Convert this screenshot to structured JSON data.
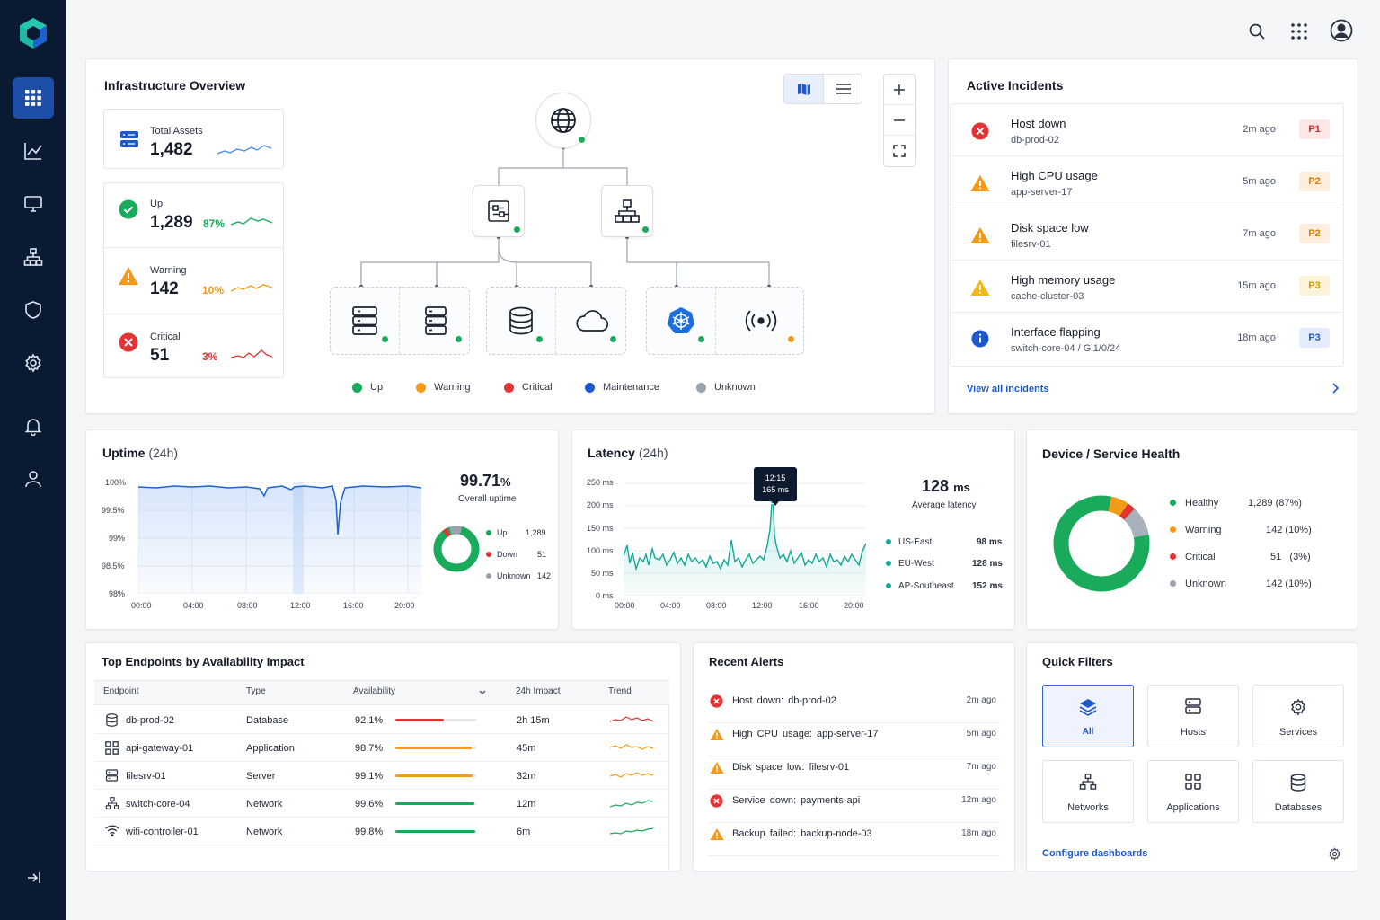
{
  "colors": {
    "accent": "#1d59cc",
    "up": "#1aaa5c",
    "warning": "#f59a18",
    "critical": "#e23434",
    "maintenance": "#1d59cc",
    "unknown": "#9aa2ae",
    "sidebar": "#0b1a33"
  },
  "sidebar": {
    "items": [
      "dashboard-grid-icon",
      "analytics-chart-icon",
      "monitor-icon",
      "network-icon",
      "shield-icon",
      "settings-gear-icon",
      "bell-icon",
      "user-icon"
    ],
    "collapse": "collapse-arrow-icon"
  },
  "topbar": {
    "icons": [
      "search-icon",
      "apps-grid-icon",
      "profile-avatar-icon"
    ]
  },
  "overview": {
    "title": "Infrastructure Overview",
    "total": {
      "label": "Total Assets",
      "value": "1,482"
    },
    "up": {
      "label": "Up",
      "value": "1,289",
      "pct": "87%"
    },
    "warning": {
      "label": "Warning",
      "value": "142",
      "pct": "10%"
    },
    "critical": {
      "label": "Critical",
      "value": "51",
      "pct": "3%"
    },
    "legend": [
      "Up",
      "Warning",
      "Critical",
      "Maintenance",
      "Unknown"
    ],
    "view_icons": [
      "map-view-icon",
      "list-view-icon"
    ],
    "zoom_icons": [
      "zoom-in-icon",
      "zoom-out-icon",
      "fit-screen-icon"
    ],
    "topology_nodes": [
      "internet-globe-icon",
      "firewall-icon",
      "switch-icon",
      "server-icon",
      "server-icon",
      "database-icon",
      "cloud-icon",
      "kubernetes-icon",
      "wireless-icon"
    ]
  },
  "incidents": {
    "title": "Active Incidents",
    "items": [
      {
        "title": "Host down",
        "sub": "db-prod-02",
        "time": "2m ago",
        "prio": "P1",
        "icon": "error-icon"
      },
      {
        "title": "High CPU usage",
        "sub": "app-server-17",
        "time": "5m ago",
        "prio": "P2",
        "icon": "warning-icon"
      },
      {
        "title": "Disk space low",
        "sub": "filesrv-01",
        "time": "7m ago",
        "prio": "P2",
        "icon": "warning-icon"
      },
      {
        "title": "High memory usage",
        "sub": "cache-cluster-03",
        "time": "15m ago",
        "prio": "P3",
        "icon": "warning-icon"
      },
      {
        "title": "Interface flapping",
        "sub": "switch-core-04 / Gi1/0/24",
        "time": "18m ago",
        "prio": "P3",
        "icon": "info-icon"
      }
    ],
    "view_all": "View all incidents"
  },
  "uptime": {
    "title": "Uptime",
    "period": "(24h)",
    "value": "99.71",
    "unit": "%",
    "caption": "Overall uptime",
    "legend": [
      {
        "label": "Up",
        "value": "1,289"
      },
      {
        "label": "Down",
        "value": "51"
      },
      {
        "label": "Unknown",
        "value": "142"
      }
    ]
  },
  "latency": {
    "title": "Latency",
    "period": "(24h)",
    "value": "128",
    "unit": "ms",
    "caption": "Average latency",
    "tooltip": {
      "time": "12:15",
      "value": "165 ms"
    },
    "regions": [
      {
        "label": "US-East",
        "value": "98 ms"
      },
      {
        "label": "EU-West",
        "value": "128 ms"
      },
      {
        "label": "AP-Southeast",
        "value": "152 ms"
      }
    ]
  },
  "health": {
    "title": "Device / Service Health",
    "items": [
      {
        "label": "Healthy",
        "value": "1,289 (87%)",
        "color": "#1aaa5c"
      },
      {
        "label": "Warning",
        "value": "142 (10%)",
        "color": "#f59a18"
      },
      {
        "label": "Critical",
        "value": "51   (3%)",
        "color": "#e23434"
      },
      {
        "label": "Unknown",
        "value": "142 (10%)",
        "color": "#9aa2ae"
      }
    ]
  },
  "endpoints": {
    "title": "Top Endpoints by Availability Impact",
    "headers": [
      "Endpoint",
      "Type",
      "Availability",
      "24h Impact",
      "Trend"
    ],
    "rows": [
      {
        "name": "db-prod-02",
        "type": "Database",
        "avail": "92.1%",
        "impact": "2h 15m",
        "fill": 0.6,
        "color": "#e23434",
        "icon": "database-icon"
      },
      {
        "name": "api-gateway-01",
        "type": "Application",
        "avail": "98.7%",
        "impact": "45m",
        "fill": 0.94,
        "color": "#f59a18",
        "icon": "application-icon"
      },
      {
        "name": "filesrv-01",
        "type": "Server",
        "avail": "99.1%",
        "impact": "32m",
        "fill": 0.96,
        "color": "#f59a18",
        "icon": "server-icon"
      },
      {
        "name": "switch-core-04",
        "type": "Network",
        "avail": "99.6%",
        "impact": "12m",
        "fill": 0.98,
        "color": "#1aaa5c",
        "icon": "network-icon"
      },
      {
        "name": "wifi-controller-01",
        "type": "Network",
        "avail": "99.8%",
        "impact": "6m",
        "fill": 0.99,
        "color": "#1aaa5c",
        "icon": "wifi-icon"
      }
    ]
  },
  "alerts": {
    "title": "Recent Alerts",
    "items": [
      {
        "text": "Host down: db-prod-02",
        "time": "2m ago",
        "icon": "error-icon"
      },
      {
        "text": "High CPU usage: app-server-17",
        "time": "5m ago",
        "icon": "warning-icon"
      },
      {
        "text": "Disk space low: filesrv-01",
        "time": "7m ago",
        "icon": "warning-icon"
      },
      {
        "text": "Service down: payments-api",
        "time": "12m ago",
        "icon": "error-icon"
      },
      {
        "text": "Backup failed: backup-node-03",
        "time": "18m ago",
        "icon": "warning-icon"
      }
    ]
  },
  "filters": {
    "title": "Quick Filters",
    "items": [
      "All",
      "Hosts",
      "Services",
      "Networks",
      "Applications",
      "Databases"
    ],
    "configure": "Configure dashboards"
  }
}
